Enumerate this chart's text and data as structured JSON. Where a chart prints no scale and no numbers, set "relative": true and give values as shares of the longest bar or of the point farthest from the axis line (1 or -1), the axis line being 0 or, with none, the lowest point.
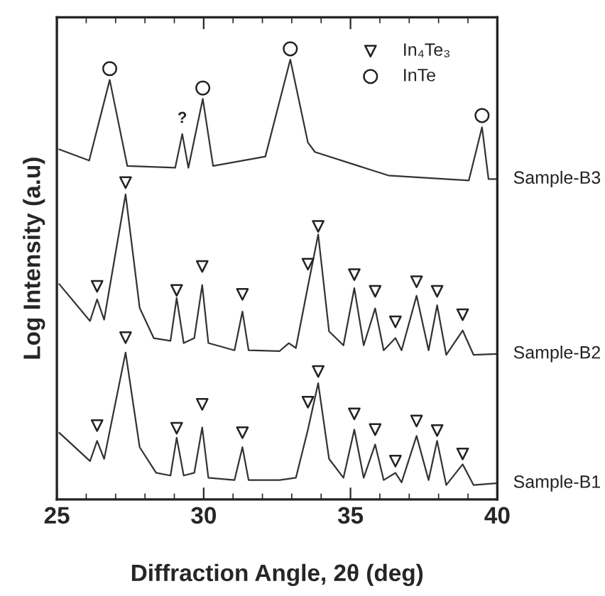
{
  "chart_data": {
    "type": "line",
    "relative": true,
    "xlabel": "Diffraction Angle, 2θ (deg)",
    "ylabel": "Log Intensity (a.u)",
    "xlim": [
      25,
      40
    ],
    "xticks": [
      25,
      30,
      35,
      40
    ],
    "tick_labels": "x",
    "grid": false,
    "legend": "top right",
    "line_style": "solid",
    "annotations": [
      {
        "text": "?",
        "x": 29.27,
        "y": 0.811
      }
    ],
    "series": [
      {
        "name": "Sample-B1",
        "color": "#333333",
        "x": [
          25.08,
          26.13,
          26.37,
          26.61,
          27.34,
          27.82,
          28.38,
          28.87,
          29.08,
          29.32,
          29.68,
          29.95,
          30.16,
          31.05,
          31.32,
          31.53,
          32.58,
          33.14,
          33.55,
          33.9,
          34.27,
          34.76,
          35.13,
          35.45,
          35.84,
          36.13,
          36.53,
          36.74,
          37.25,
          37.66,
          37.95,
          38.26,
          38.82,
          39.19,
          39.96
        ],
        "values": [
          0.148,
          0.085,
          0.13,
          0.09,
          0.326,
          0.116,
          0.059,
          0.053,
          0.137,
          0.053,
          0.059,
          0.16,
          0.048,
          0.043,
          0.116,
          0.043,
          0.043,
          0.048,
          0.155,
          0.258,
          0.09,
          0.048,
          0.155,
          0.048,
          0.122,
          0.043,
          0.059,
          0.038,
          0.141,
          0.043,
          0.13,
          0.032,
          0.078,
          0.032,
          0.036
        ]
      },
      {
        "name": "Sample-B2",
        "color": "#333333",
        "x": [
          25.08,
          26.13,
          26.37,
          26.61,
          27.34,
          27.82,
          28.3,
          28.87,
          29.08,
          29.32,
          29.68,
          29.95,
          30.16,
          31.05,
          31.32,
          31.53,
          32.58,
          32.9,
          33.14,
          33.55,
          33.9,
          34.27,
          34.76,
          35.13,
          35.45,
          35.84,
          36.13,
          36.53,
          36.74,
          37.25,
          37.66,
          37.95,
          38.26,
          38.82,
          39.19,
          39.96
        ],
        "values": [
          0.478,
          0.396,
          0.444,
          0.399,
          0.677,
          0.425,
          0.358,
          0.352,
          0.447,
          0.347,
          0.358,
          0.476,
          0.347,
          0.331,
          0.417,
          0.331,
          0.329,
          0.347,
          0.336,
          0.473,
          0.588,
          0.373,
          0.342,
          0.469,
          0.342,
          0.424,
          0.331,
          0.358,
          0.331,
          0.452,
          0.331,
          0.431,
          0.321,
          0.375,
          0.321,
          0.323
        ]
      },
      {
        "name": "Sample-B3",
        "color": "#333333",
        "x": [
          25.08,
          26.1,
          26.8,
          27.4,
          29.03,
          29.27,
          29.48,
          29.97,
          30.32,
          32.1,
          32.95,
          33.55,
          33.79,
          36.29,
          39.03,
          39.48,
          39.7,
          39.96
        ],
        "values": [
          0.777,
          0.752,
          0.931,
          0.74,
          0.736,
          0.811,
          0.736,
          0.889,
          0.74,
          0.761,
          0.976,
          0.792,
          0.771,
          0.719,
          0.708,
          0.826,
          0.711,
          0.711
        ]
      },
      {
        "name": "In₄Te₃",
        "type": "scatter",
        "marker": "triangle",
        "color": "#222222",
        "x": [
          26.37,
          27.34,
          29.08,
          29.95,
          31.32,
          33.55,
          33.9,
          35.13,
          35.84,
          36.53,
          37.25,
          37.95,
          38.82,
          26.37,
          27.34,
          29.08,
          29.95,
          31.32,
          33.55,
          33.9,
          35.13,
          35.84,
          36.53,
          37.25,
          37.95,
          38.82
        ],
        "values": [
          0.473,
          0.703,
          0.464,
          0.517,
          0.455,
          0.522,
          0.606,
          0.499,
          0.462,
          0.394,
          0.483,
          0.462,
          0.41,
          0.164,
          0.359,
          0.158,
          0.211,
          0.148,
          0.216,
          0.284,
          0.19,
          0.155,
          0.085,
          0.174,
          0.153,
          0.101
        ]
      },
      {
        "name": "InTe",
        "type": "scatter",
        "marker": "circle",
        "color": "#222222",
        "x": [
          26.8,
          29.97,
          32.95,
          39.48
        ],
        "values": [
          0.956,
          0.913,
          1.0,
          0.852
        ]
      }
    ]
  }
}
